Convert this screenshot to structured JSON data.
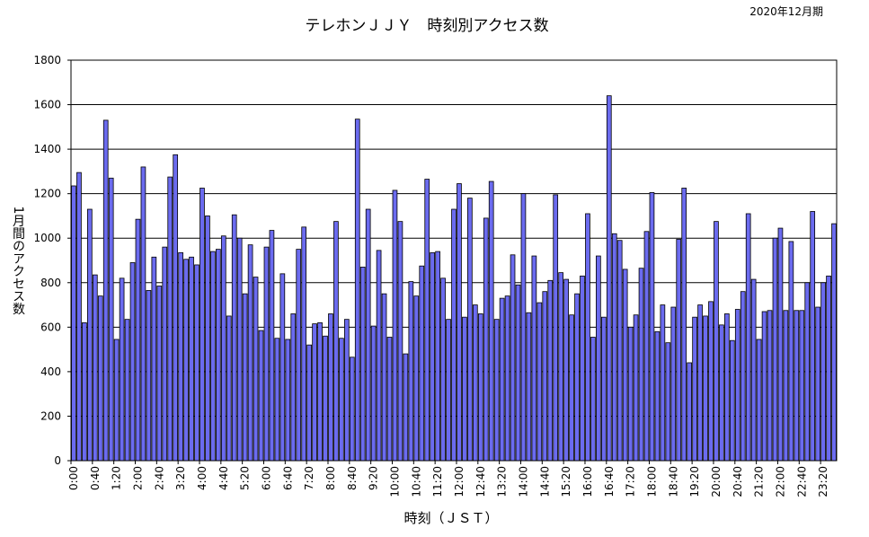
{
  "chart_data": {
    "type": "bar",
    "title": "テレホンＪＪＹ　時刻別アクセス数",
    "period_label": "2020年12月期",
    "xlabel": "時刻（ＪＳＴ）",
    "ylabel": "1月間のアクセス数",
    "ylim": [
      0,
      1800
    ],
    "yticks": [
      "0",
      "200",
      "400",
      "600",
      "800",
      "1000",
      "1200",
      "1400",
      "1600",
      "1800"
    ],
    "grid": "horizontal",
    "bar_color": "#6b6bef",
    "interval_minutes": 10,
    "xtick_labels": [
      "0:00",
      "0:40",
      "1:20",
      "2:00",
      "2:40",
      "3:20",
      "4:00",
      "4:40",
      "5:20",
      "6:00",
      "6:40",
      "7:20",
      "8:00",
      "8:40",
      "9:20",
      "10:00",
      "10:40",
      "11:20",
      "12:00",
      "12:40",
      "13:20",
      "14:00",
      "14:40",
      "15:20",
      "16:00",
      "16:40",
      "17:20",
      "18:00",
      "18:40",
      "19:20",
      "20:00",
      "20:40",
      "21:20",
      "22:00",
      "22:40",
      "23:20"
    ],
    "values": [
      1235,
      1295,
      620,
      1130,
      835,
      740,
      1530,
      1270,
      545,
      820,
      635,
      890,
      1085,
      1320,
      765,
      915,
      785,
      960,
      1275,
      1375,
      935,
      905,
      915,
      880,
      1225,
      1100,
      940,
      950,
      1010,
      650,
      1105,
      1000,
      750,
      970,
      825,
      585,
      960,
      1035,
      550,
      840,
      545,
      660,
      950,
      1050,
      520,
      615,
      620,
      560,
      660,
      1075,
      550,
      635,
      465,
      1535,
      870,
      1130,
      605,
      945,
      750,
      555,
      1215,
      1075,
      480,
      805,
      740,
      875,
      1265,
      935,
      940,
      820,
      635,
      1130,
      1245,
      645,
      1180,
      700,
      660,
      1090,
      1255,
      635,
      730,
      740,
      925,
      790,
      1200,
      665,
      920,
      710,
      760,
      810,
      1195,
      845,
      815,
      655,
      750,
      830,
      1110,
      555,
      920,
      645,
      1640,
      1020,
      990,
      860,
      600,
      655,
      865,
      1030,
      1205,
      580,
      700,
      530,
      690,
      995,
      1225,
      440,
      645,
      700,
      650,
      715,
      1075,
      610,
      660,
      540,
      680,
      760,
      1110,
      815,
      545,
      670,
      675,
      1000,
      1045,
      675,
      985,
      675,
      675,
      800,
      1120,
      690,
      800,
      830,
      1065
    ]
  }
}
